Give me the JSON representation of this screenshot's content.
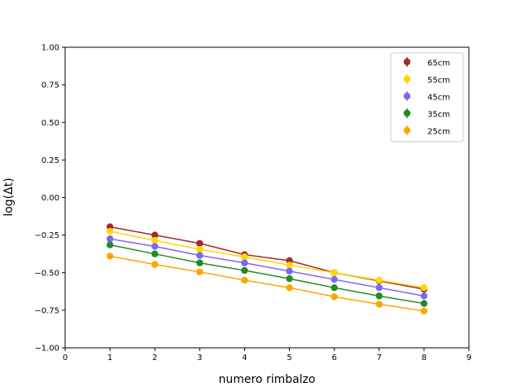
{
  "chart_data": {
    "type": "line",
    "title": "",
    "xlabel": "numero rimbalzo",
    "ylabel": "log(Δt)",
    "xlim": [
      0,
      9
    ],
    "ylim": [
      -1.0,
      1.0
    ],
    "xticks": [
      0,
      1,
      2,
      3,
      4,
      5,
      6,
      7,
      8,
      9
    ],
    "yticks": [
      -1.0,
      -0.75,
      -0.5,
      -0.25,
      0.0,
      0.25,
      0.5,
      0.75,
      1.0
    ],
    "xtick_labels": [
      "0",
      "1",
      "2",
      "3",
      "4",
      "5",
      "6",
      "7",
      "8",
      "9"
    ],
    "ytick_labels": [
      "−1.00",
      "−0.75",
      "−0.50",
      "−0.25",
      "0.00",
      "0.25",
      "0.50",
      "0.75",
      "1.00"
    ],
    "grid": false,
    "legend_position": "top-right",
    "x": [
      1,
      2,
      3,
      4,
      5,
      6,
      7,
      8
    ],
    "series": [
      {
        "name": "65cm",
        "color": "#a52a2a",
        "values": [
          -0.195,
          -0.25,
          -0.305,
          -0.38,
          -0.42,
          -0.5,
          -0.555,
          -0.61
        ]
      },
      {
        "name": "55cm",
        "color": "#ffd700",
        "values": [
          -0.225,
          -0.285,
          -0.345,
          -0.395,
          -0.45,
          -0.5,
          -0.55,
          -0.6
        ]
      },
      {
        "name": "45cm",
        "color": "#7b68ee",
        "values": [
          -0.275,
          -0.325,
          -0.385,
          -0.435,
          -0.49,
          -0.545,
          -0.6,
          -0.655
        ]
      },
      {
        "name": "35cm",
        "color": "#228b22",
        "values": [
          -0.315,
          -0.375,
          -0.435,
          -0.485,
          -0.54,
          -0.6,
          -0.655,
          -0.705
        ]
      },
      {
        "name": "25cm",
        "color": "#ffa500",
        "values": [
          -0.39,
          -0.445,
          -0.495,
          -0.55,
          -0.6,
          -0.66,
          -0.71,
          -0.755
        ]
      }
    ]
  }
}
